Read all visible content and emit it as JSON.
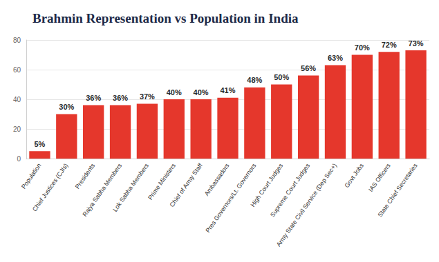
{
  "chart_data": {
    "type": "bar",
    "title": "Brahmin Representation vs Population in India",
    "categories": [
      "Population",
      "Chief Justices (CJIs)",
      "Presidents",
      "Rajya Sabha Members",
      "Lok Sabha Members",
      "Prime Ministers",
      "Chief of Army Staff",
      "Ambassadors",
      "Pres Governors/Lt. Governors",
      "High Court Judges",
      "Supreme Court Judges",
      "Army State Civil Service (Dep Sec+)",
      "Govt Jobs",
      "IAS Officers",
      "State Chief Secretaries"
    ],
    "values": [
      5,
      30,
      36,
      36,
      37,
      40,
      40,
      41,
      48,
      50,
      56,
      63,
      70,
      72,
      73
    ],
    "value_labels": [
      "5%",
      "30%",
      "36%",
      "36%",
      "37%",
      "40%",
      "40%",
      "41%",
      "48%",
      "50%",
      "56%",
      "63%",
      "70%",
      "72%",
      "73%"
    ],
    "color": "#e5372c",
    "ylim": [
      0,
      80
    ],
    "yticks": [
      0,
      20,
      40,
      60,
      80
    ],
    "grid": true,
    "data_labels": true
  }
}
